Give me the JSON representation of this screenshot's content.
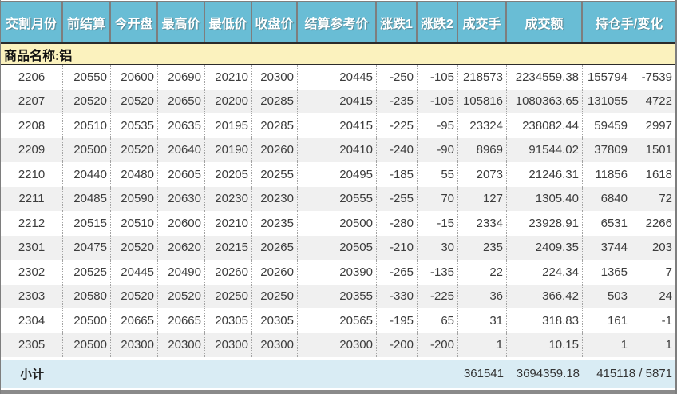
{
  "table": {
    "headers": [
      "交割月份",
      "前结算",
      "今开盘",
      "最高价",
      "最低价",
      "收盘价",
      "结算参考价",
      "涨跌1",
      "涨跌2",
      "成交手",
      "成交额",
      "持仓手/变化"
    ],
    "product_label": "商品名称:铝",
    "rows": [
      [
        "2206",
        "20550",
        "20600",
        "20690",
        "20210",
        "20300",
        "20445",
        "-250",
        "-105",
        "218573",
        "2234559.38",
        "155794",
        "-7539"
      ],
      [
        "2207",
        "20520",
        "20520",
        "20650",
        "20200",
        "20285",
        "20415",
        "-235",
        "-105",
        "105816",
        "1080363.65",
        "131055",
        "4722"
      ],
      [
        "2208",
        "20510",
        "20535",
        "20635",
        "20195",
        "20285",
        "20415",
        "-225",
        "-95",
        "23324",
        "238082.44",
        "59459",
        "2997"
      ],
      [
        "2209",
        "20500",
        "20520",
        "20640",
        "20190",
        "20260",
        "20410",
        "-240",
        "-90",
        "8969",
        "91544.02",
        "37809",
        "1501"
      ],
      [
        "2210",
        "20440",
        "20480",
        "20605",
        "20205",
        "20255",
        "20495",
        "-185",
        "55",
        "2073",
        "21246.31",
        "11856",
        "1618"
      ],
      [
        "2211",
        "20485",
        "20590",
        "20630",
        "20230",
        "20230",
        "20555",
        "-255",
        "70",
        "127",
        "1305.40",
        "6840",
        "72"
      ],
      [
        "2212",
        "20515",
        "20510",
        "20600",
        "20210",
        "20235",
        "20500",
        "-280",
        "-15",
        "2334",
        "23928.91",
        "6531",
        "2266"
      ],
      [
        "2301",
        "20475",
        "20520",
        "20620",
        "20215",
        "20265",
        "20505",
        "-210",
        "30",
        "235",
        "2409.35",
        "3744",
        "203"
      ],
      [
        "2302",
        "20525",
        "20445",
        "20490",
        "20260",
        "20260",
        "20390",
        "-265",
        "-135",
        "22",
        "224.34",
        "1365",
        "7"
      ],
      [
        "2303",
        "20580",
        "20520",
        "20520",
        "20250",
        "20250",
        "20355",
        "-330",
        "-225",
        "36",
        "366.42",
        "503",
        "24"
      ],
      [
        "2304",
        "20500",
        "20665",
        "20665",
        "20305",
        "20305",
        "20565",
        "-195",
        "65",
        "31",
        "318.83",
        "161",
        "-1"
      ],
      [
        "2305",
        "20500",
        "20300",
        "20300",
        "20300",
        "20300",
        "20300",
        "-200",
        "-200",
        "1",
        "10.15",
        "1",
        "1"
      ]
    ],
    "subtotal": {
      "label": "小计",
      "volume": "361541",
      "turnover": "3694359.18",
      "open_interest_and_change": "415118 / 5871"
    }
  },
  "colors": {
    "header_bg": "#69bdd5",
    "product_band_bg": "#fbf2be",
    "alt_row_bg": "#f0f0f0",
    "subtotal_bg": "#d9ecf4",
    "border_gray": "#7e7e7e"
  }
}
